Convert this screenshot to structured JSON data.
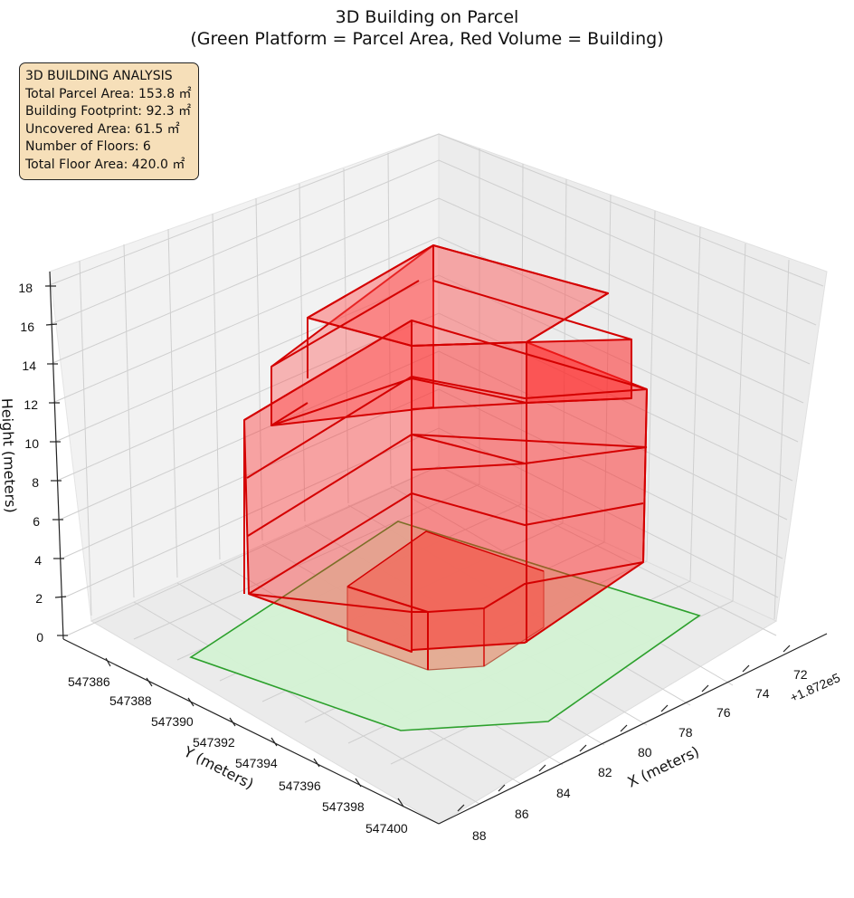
{
  "chart_data": {
    "type": "3d-volume",
    "title_line1": "3D Building on Parcel",
    "title_line2": "(Green Platform = Parcel Area, Red Volume = Building)",
    "xlabel": "X (meters)",
    "ylabel": "Y (meters)",
    "zlabel": "Height (meters)",
    "x_offset_label": "+1.872e5",
    "x_ticks": [
      "72",
      "74",
      "76",
      "78",
      "80",
      "82",
      "84",
      "86",
      "88"
    ],
    "y_ticks": [
      "547386",
      "547388",
      "547390",
      "547392",
      "547394",
      "547396",
      "547398",
      "547400"
    ],
    "z_ticks": [
      "0",
      "2",
      "4",
      "6",
      "8",
      "10",
      "12",
      "14",
      "16",
      "18"
    ],
    "floors": 6,
    "colors": {
      "parcel": "#2ca02c",
      "parcel_fill": "#d4f2d4",
      "building": "#ff0000",
      "building_edge": "#d40000",
      "box": "#f6dfb9"
    }
  },
  "info_box": {
    "line1": "3D BUILDING ANALYSIS",
    "line2": "Total Parcel Area: 153.8 ㎡",
    "line3": "Building Footprint: 92.3 ㎡",
    "line4": "Uncovered Area: 61.5 ㎡",
    "line5": "Number of Floors: 6",
    "line6": "Total Floor Area: 420.0 ㎡"
  }
}
